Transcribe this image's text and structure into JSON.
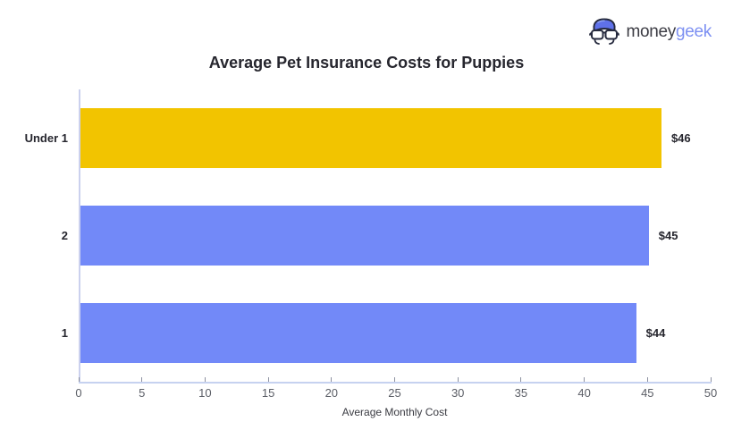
{
  "logo": {
    "brand_prefix": "money",
    "brand_suffix": "geek",
    "prefix_color": "#3C3C44",
    "suffix_color": "#7D90F2"
  },
  "chart_data": {
    "type": "bar",
    "orientation": "horizontal",
    "title": "Average Pet Insurance Costs for Puppies",
    "xlabel": "Average Monthly Cost",
    "ylabel": "",
    "categories": [
      "Under 1",
      "2",
      "1"
    ],
    "values": [
      46,
      45,
      44
    ],
    "value_labels": [
      "$46",
      "$45",
      "$44"
    ],
    "bar_colors": [
      "#F2C400",
      "#7289F8",
      "#7289F8"
    ],
    "xlim": [
      0,
      50
    ],
    "xticks": [
      0,
      5,
      10,
      15,
      20,
      25,
      30,
      35,
      40,
      45,
      50
    ],
    "grid": false,
    "legend": false
  },
  "colors": {
    "axis_line_vertical": "#CBD1EE",
    "axis_line_horizontal": "#C6D2F0",
    "tick_mark": "#8C90A0",
    "tick_label": "#5B5E66",
    "text_dark": "#26262E"
  }
}
